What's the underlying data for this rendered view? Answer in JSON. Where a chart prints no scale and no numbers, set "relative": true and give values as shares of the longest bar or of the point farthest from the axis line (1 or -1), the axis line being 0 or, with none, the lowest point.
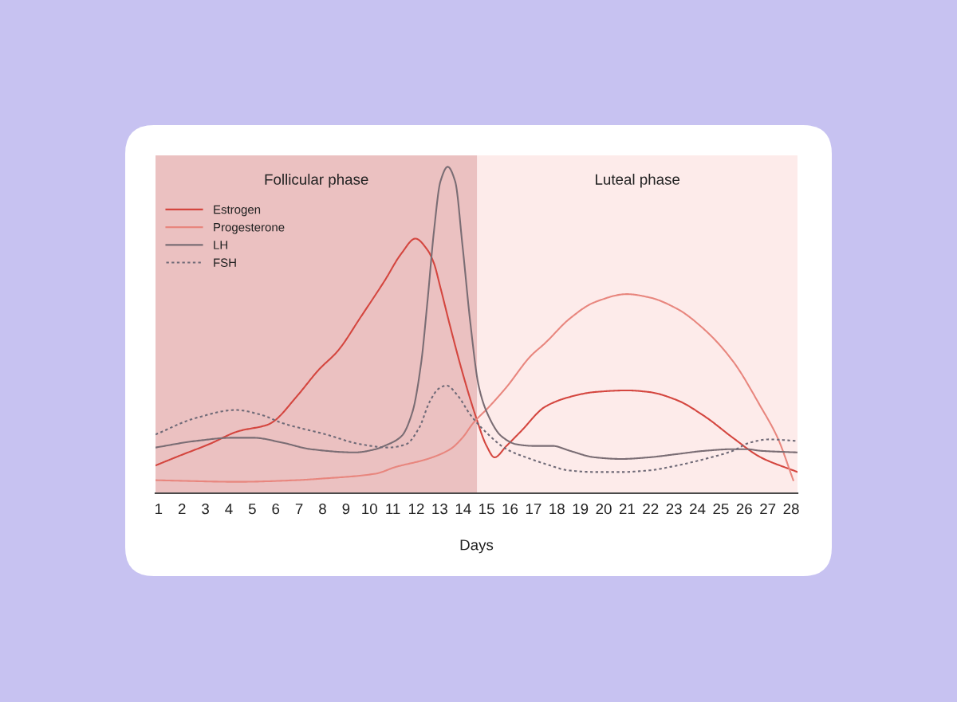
{
  "chart_data": {
    "type": "line",
    "xlabel": "Days",
    "relative": true,
    "xlim": [
      0.87,
      28.27
    ],
    "xticks": [
      1,
      2,
      3,
      4,
      5,
      6,
      7,
      8,
      9,
      10,
      11,
      12,
      13,
      14,
      15,
      16,
      17,
      18,
      19,
      20,
      21,
      22,
      23,
      24,
      25,
      26,
      27,
      28
    ],
    "tick_labels": "x",
    "legend": "top left",
    "bands": [
      {
        "axis": "x",
        "from": 0.87,
        "to": 14.6,
        "label": "Follicular phase",
        "color": "#ebc1c1"
      },
      {
        "axis": "x",
        "from": 14.6,
        "to": 28.27,
        "label": "Luteal phase",
        "color": "#fdebea"
      }
    ],
    "series": [
      {
        "name": "Estrogen",
        "color": "#d4463f",
        "line_style": "solid",
        "x": [
          0.87,
          1.9,
          3.15,
          4.41,
          5.66,
          5.91,
          6.88,
          7.86,
          8.64,
          9.63,
          10.64,
          11.37,
          11.96,
          12.48,
          12.75,
          13.03,
          13.45,
          13.97,
          14.54,
          15.0,
          15.34,
          15.85,
          16.47,
          17.5,
          18.55,
          19.61,
          20.99,
          21.94,
          23.13,
          24.32,
          25.51,
          26.7,
          28.27
        ],
        "values": [
          0.085,
          0.115,
          0.15,
          0.19,
          0.21,
          0.22,
          0.295,
          0.38,
          0.435,
          0.54,
          0.65,
          0.735,
          0.78,
          0.745,
          0.705,
          0.63,
          0.51,
          0.37,
          0.235,
          0.145,
          0.11,
          0.145,
          0.19,
          0.265,
          0.295,
          0.31,
          0.315,
          0.31,
          0.285,
          0.235,
          0.17,
          0.11,
          0.065
        ]
      },
      {
        "name": "Progesterone",
        "color": "#e8867e",
        "line_style": "solid",
        "x": [
          0.87,
          4.41,
          6.88,
          8.0,
          10.27,
          11.1,
          12.48,
          13.45,
          13.97,
          14.43,
          15.11,
          15.85,
          16.88,
          17.5,
          18.55,
          19.61,
          20.99,
          21.94,
          23.13,
          24.32,
          25.51,
          26.7,
          27.42,
          28.09
        ],
        "values": [
          0.04,
          0.035,
          0.04,
          0.045,
          0.06,
          0.08,
          0.105,
          0.135,
          0.17,
          0.215,
          0.265,
          0.325,
          0.42,
          0.46,
          0.535,
          0.585,
          0.61,
          0.6,
          0.565,
          0.5,
          0.405,
          0.265,
          0.17,
          0.04
        ]
      },
      {
        "name": "LH",
        "color": "#7a6d74",
        "line_style": "solid",
        "x": [
          0.87,
          2.57,
          4.16,
          5.03,
          6.28,
          7.49,
          9.38,
          10.27,
          10.64,
          11.37,
          11.84,
          12.2,
          12.48,
          12.75,
          13.03,
          13.34,
          13.66,
          13.97,
          14.31,
          14.66,
          15.0,
          15.63,
          16.27,
          16.98,
          17.82,
          18.55,
          19.61,
          20.75,
          21.94,
          23.13,
          24.32,
          25.51,
          26.11,
          26.7,
          28.27
        ],
        "values": [
          0.14,
          0.16,
          0.17,
          0.17,
          0.155,
          0.135,
          0.125,
          0.135,
          0.145,
          0.175,
          0.25,
          0.395,
          0.59,
          0.8,
          0.955,
          1.0,
          0.955,
          0.76,
          0.52,
          0.33,
          0.25,
          0.175,
          0.15,
          0.145,
          0.145,
          0.13,
          0.11,
          0.105,
          0.11,
          0.12,
          0.13,
          0.135,
          0.135,
          0.13,
          0.125
        ]
      },
      {
        "name": "FSH",
        "color": "#6f6a77",
        "line_style": "dotted",
        "x": [
          0.87,
          2.57,
          4.29,
          5.39,
          6.28,
          8.15,
          9.63,
          10.82,
          11.56,
          12.12,
          12.57,
          12.95,
          13.29,
          13.76,
          14.31,
          15.0,
          15.85,
          16.88,
          17.5,
          18.5,
          19.6,
          20.75,
          21.94,
          23.13,
          24.32,
          25.51,
          26.23,
          27.06,
          28.27
        ],
        "values": [
          0.18,
          0.23,
          0.255,
          0.24,
          0.215,
          0.18,
          0.15,
          0.14,
          0.15,
          0.2,
          0.28,
          0.32,
          0.33,
          0.3,
          0.24,
          0.185,
          0.135,
          0.105,
          0.09,
          0.07,
          0.065,
          0.065,
          0.07,
          0.085,
          0.105,
          0.13,
          0.155,
          0.165,
          0.16
        ]
      }
    ]
  }
}
